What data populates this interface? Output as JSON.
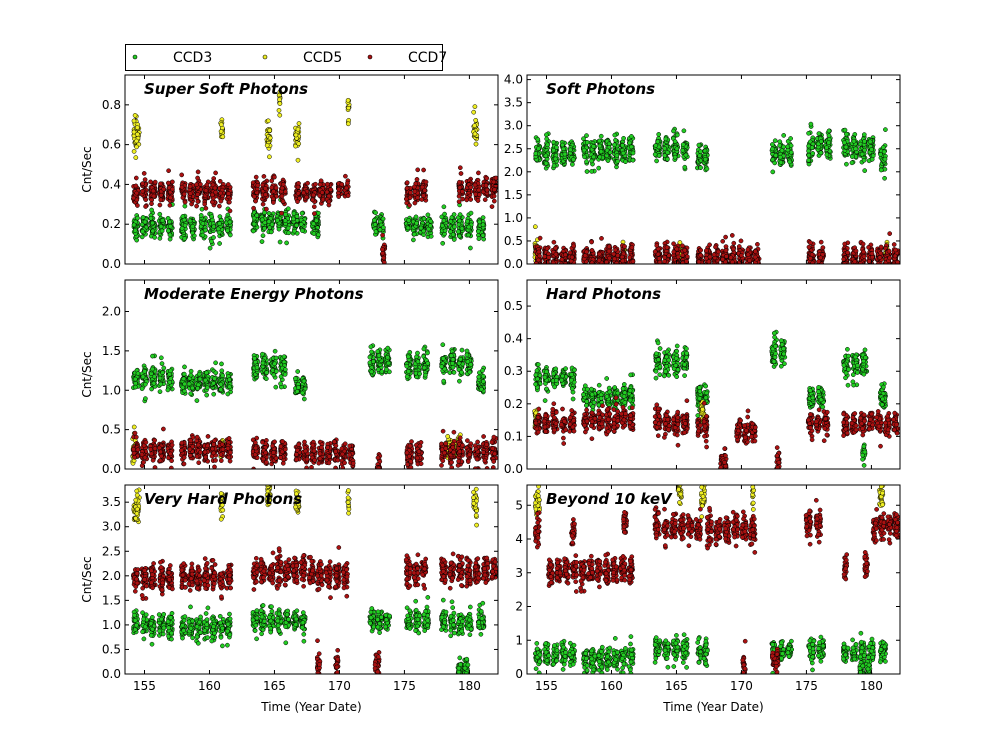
{
  "chart_data": {
    "type": "scatter",
    "legend": {
      "placement": "top-left",
      "entries": [
        {
          "name": "CCD3",
          "color": "#22cc22"
        },
        {
          "name": "CCD5",
          "color": "#eeee22"
        },
        {
          "name": "CCD7",
          "color": "#aa1111"
        }
      ]
    },
    "xlabel": "Time (Year Date)",
    "ylabel": "Cnt/Sec",
    "xlim": [
      153.5,
      182.2
    ],
    "xticks": [
      155,
      160,
      165,
      170,
      175,
      180
    ],
    "panels": [
      {
        "title": "Super Soft Photons",
        "ylim": [
          0.0,
          0.95
        ],
        "yticks": [
          0.0,
          0.2,
          0.4,
          0.6,
          0.8
        ],
        "ytick_labels": [
          "0.0",
          "0.2",
          "0.4",
          "0.6",
          "0.8"
        ],
        "series": [
          {
            "name": "CCD3",
            "segments": [
              [
                154,
                157.3,
                0.19
              ],
              [
                157.7,
                159,
                0.19
              ],
              [
                159.2,
                161.8,
                0.19
              ],
              [
                163.2,
                167.5,
                0.21
              ],
              [
                167.7,
                168.6,
                0.2
              ],
              [
                172.5,
                173.5,
                0.2
              ],
              [
                175,
                177.2,
                0.19
              ],
              [
                177.7,
                180.3,
                0.19
              ],
              [
                180.5,
                181.3,
                0.18
              ]
            ]
          },
          {
            "name": "CCD5",
            "segments": [
              [
                154,
                154.8,
                0.66
              ],
              [
                160.8,
                161.1,
                0.67
              ],
              [
                164.3,
                164.8,
                0.64
              ],
              [
                165.3,
                165.5,
                0.82
              ],
              [
                166.5,
                167,
                0.64
              ],
              [
                170.6,
                170.8,
                0.78
              ],
              [
                180.2,
                180.7,
                0.68
              ]
            ]
          },
          {
            "name": "CCD7",
            "segments": [
              [
                154,
                157.3,
                0.36
              ],
              [
                157.7,
                161.8,
                0.36
              ],
              [
                163.2,
                166,
                0.37
              ],
              [
                166.5,
                169.5,
                0.36
              ],
              [
                169.8,
                170.8,
                0.38
              ],
              [
                173.2,
                173.6,
                0.05
              ],
              [
                175,
                176.8,
                0.36
              ],
              [
                179,
                182.2,
                0.38
              ]
            ]
          }
        ]
      },
      {
        "title": "Soft Photons",
        "ylim": [
          0.0,
          4.1
        ],
        "yticks": [
          0.0,
          0.5,
          1.0,
          1.5,
          2.0,
          2.5,
          3.0,
          3.5,
          4.0
        ],
        "ytick_labels": [
          "0.0",
          "0.5",
          "1.0",
          "1.5",
          "2.0",
          "2.5",
          "3.0",
          "3.5",
          "4.0"
        ],
        "series": [
          {
            "name": "CCD3",
            "segments": [
              [
                154,
                157.3,
                2.4
              ],
              [
                157.7,
                161.8,
                2.45
              ],
              [
                163.2,
                166,
                2.5
              ],
              [
                166.5,
                167.5,
                2.3
              ],
              [
                172.2,
                174,
                2.4
              ],
              [
                175,
                177,
                2.55
              ],
              [
                177.7,
                180.3,
                2.5
              ],
              [
                180.5,
                181.3,
                2.3
              ]
            ]
          },
          {
            "name": "CCD5",
            "segments": [
              [
                154,
                154.5,
                0.3
              ],
              [
                160.8,
                161.1,
                0.25
              ],
              [
                165,
                165.5,
                0.25
              ],
              [
                181,
                181.3,
                0.25
              ]
            ]
          },
          {
            "name": "CCD7",
            "segments": [
              [
                154,
                157.3,
                0.15
              ],
              [
                157.7,
                161.8,
                0.17
              ],
              [
                163.2,
                166,
                0.17
              ],
              [
                166.5,
                171.5,
                0.14
              ],
              [
                175,
                176.5,
                0.16
              ],
              [
                177.7,
                182.2,
                0.16
              ]
            ]
          }
        ]
      },
      {
        "title": "Moderate Energy Photons",
        "ylim": [
          0.0,
          2.4
        ],
        "yticks": [
          0.0,
          0.5,
          1.0,
          1.5,
          2.0
        ],
        "ytick_labels": [
          "0.0",
          "0.5",
          "1.0",
          "1.5",
          "2.0"
        ],
        "series": [
          {
            "name": "CCD3",
            "segments": [
              [
                154,
                157.3,
                1.15
              ],
              [
                157.7,
                161.8,
                1.1
              ],
              [
                163.2,
                166,
                1.3
              ],
              [
                166.5,
                167.5,
                1.05
              ],
              [
                172.2,
                174,
                1.35
              ],
              [
                175,
                177,
                1.3
              ],
              [
                177.7,
                180.3,
                1.35
              ],
              [
                180.5,
                181.3,
                1.1
              ]
            ]
          },
          {
            "name": "CCD5",
            "segments": [
              [
                154,
                154.4,
                0.25
              ],
              [
                160.8,
                161.1,
                0.3
              ],
              [
                178,
                179.5,
                0.25
              ]
            ]
          },
          {
            "name": "CCD7",
            "segments": [
              [
                154,
                157.3,
                0.22
              ],
              [
                157.7,
                161.8,
                0.25
              ],
              [
                163.2,
                166,
                0.22
              ],
              [
                166.5,
                171.2,
                0.19
              ],
              [
                172.8,
                173.2,
                0.02
              ],
              [
                175,
                176.5,
                0.2
              ],
              [
                177.7,
                182.2,
                0.22
              ]
            ]
          }
        ]
      },
      {
        "title": "Hard Photons",
        "ylim": [
          0.0,
          0.58
        ],
        "yticks": [
          0.0,
          0.1,
          0.2,
          0.3,
          0.4,
          0.5
        ],
        "ytick_labels": [
          "0.0",
          "0.1",
          "0.2",
          "0.3",
          "0.4",
          "0.5"
        ],
        "series": [
          {
            "name": "CCD3",
            "segments": [
              [
                154,
                157.3,
                0.28
              ],
              [
                157.7,
                161.8,
                0.22
              ],
              [
                163.2,
                166,
                0.33
              ],
              [
                166.5,
                167.5,
                0.22
              ],
              [
                172.2,
                173.5,
                0.36
              ],
              [
                175,
                176.5,
                0.22
              ],
              [
                177.7,
                179.8,
                0.32
              ],
              [
                179.2,
                179.6,
                0.05
              ],
              [
                180.5,
                181.3,
                0.22
              ]
            ]
          },
          {
            "name": "CCD5",
            "segments": [
              [
                154,
                154.4,
                0.15
              ],
              [
                166.8,
                167.2,
                0.17
              ]
            ]
          },
          {
            "name": "CCD7",
            "segments": [
              [
                154,
                157.3,
                0.14
              ],
              [
                157.7,
                161.8,
                0.15
              ],
              [
                163.2,
                166,
                0.14
              ],
              [
                166.5,
                167.5,
                0.13
              ],
              [
                168.2,
                169,
                0.02
              ],
              [
                169.5,
                171.2,
                0.12
              ],
              [
                172.6,
                173,
                0.02
              ],
              [
                175,
                176.8,
                0.14
              ],
              [
                177.7,
                182.2,
                0.14
              ]
            ]
          }
        ]
      },
      {
        "title": "Very Hard Photons",
        "ylim": [
          0.0,
          3.85
        ],
        "yticks": [
          0.0,
          0.5,
          1.0,
          1.5,
          2.0,
          2.5,
          3.0,
          3.5
        ],
        "ytick_labels": [
          "0.0",
          "0.5",
          "1.0",
          "1.5",
          "2.0",
          "2.5",
          "3.0",
          "3.5"
        ],
        "series": [
          {
            "name": "CCD3",
            "segments": [
              [
                154,
                157.3,
                1.0
              ],
              [
                157.7,
                161.8,
                0.95
              ],
              [
                163.2,
                167.5,
                1.1
              ],
              [
                172.2,
                174,
                1.1
              ],
              [
                175,
                177,
                1.1
              ],
              [
                177.7,
                180.3,
                1.05
              ],
              [
                179,
                180,
                0.1
              ],
              [
                180.5,
                181.3,
                1.05
              ]
            ]
          },
          {
            "name": "CCD5",
            "segments": [
              [
                154,
                154.8,
                3.35
              ],
              [
                160.8,
                161.1,
                3.45
              ],
              [
                164.3,
                164.8,
                3.7
              ],
              [
                166.5,
                167,
                3.5
              ],
              [
                170.6,
                170.8,
                3.5
              ],
              [
                180.2,
                180.7,
                3.45
              ]
            ]
          },
          {
            "name": "CCD7",
            "segments": [
              [
                154,
                157.3,
                1.95
              ],
              [
                157.7,
                161.8,
                1.95
              ],
              [
                163.2,
                167.5,
                2.1
              ],
              [
                167.5,
                170.8,
                2.0
              ],
              [
                168.2,
                168.6,
                0.2
              ],
              [
                169.6,
                170,
                0.2
              ],
              [
                172.6,
                173.2,
                0.2
              ],
              [
                175,
                176.8,
                2.1
              ],
              [
                177.7,
                182.2,
                2.1
              ]
            ]
          }
        ]
      },
      {
        "title": "Beyond 10 keV",
        "ylim": [
          0.0,
          5.6
        ],
        "yticks": [
          0,
          1,
          2,
          3,
          4,
          5
        ],
        "ytick_labels": [
          "0",
          "1",
          "2",
          "3",
          "4",
          "5"
        ],
        "series": [
          {
            "name": "CCD3",
            "segments": [
              [
                154,
                157.3,
                0.55
              ],
              [
                157.7,
                161.8,
                0.45
              ],
              [
                163.2,
                166,
                0.75
              ],
              [
                166.5,
                167.5,
                0.65
              ],
              [
                172.2,
                174,
                0.7
              ],
              [
                175,
                176.5,
                0.75
              ],
              [
                177.7,
                180.3,
                0.65
              ],
              [
                179,
                180,
                0.05
              ],
              [
                180.5,
                181.3,
                0.7
              ]
            ]
          },
          {
            "name": "CCD5",
            "segments": [
              [
                154,
                154.6,
                5.1
              ],
              [
                165,
                165.5,
                5.5
              ],
              [
                166.8,
                167.3,
                5.2
              ],
              [
                170.8,
                171,
                5.35
              ],
              [
                180.5,
                181,
                5.2
              ]
            ]
          },
          {
            "name": "CCD7",
            "segments": [
              [
                154,
                154.6,
                4.2
              ],
              [
                156.8,
                157.3,
                4.15
              ],
              [
                155,
                161.8,
                3.05
              ],
              [
                160.8,
                161.3,
                4.5
              ],
              [
                163.2,
                167,
                4.35
              ],
              [
                167.2,
                171.2,
                4.25
              ],
              [
                172.2,
                173,
                0.4
              ],
              [
                170,
                170.4,
                0.3
              ],
              [
                174.8,
                176.3,
                4.45
              ],
              [
                177.8,
                178.2,
                3.1
              ],
              [
                179.4,
                179.8,
                3.15
              ],
              [
                180,
                182.2,
                4.4
              ]
            ]
          }
        ]
      }
    ]
  }
}
